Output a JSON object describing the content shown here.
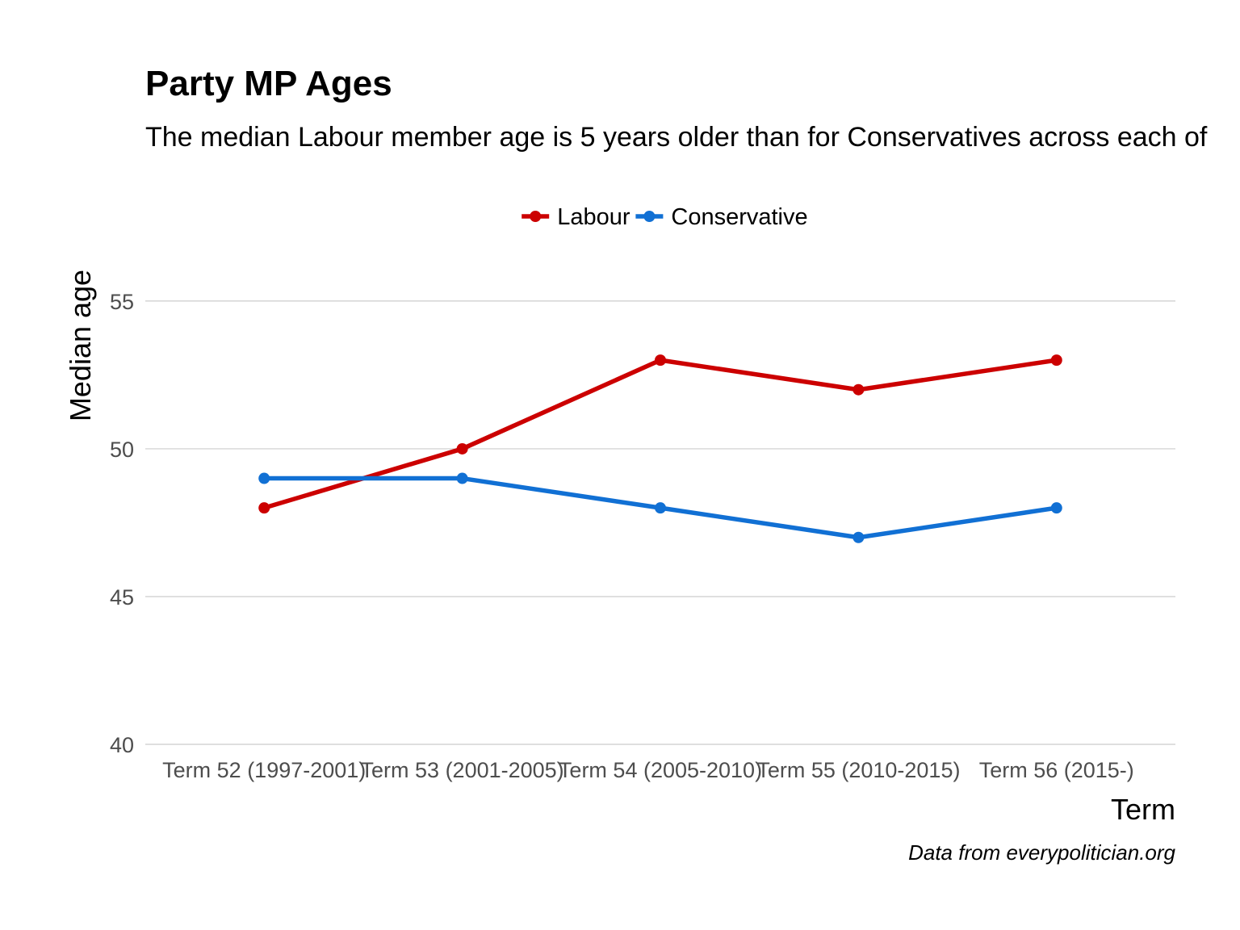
{
  "chart_data": {
    "type": "line",
    "title": "Party MP Ages",
    "subtitle": "The median Labour member age is 5 years older than for Conservatives across each of",
    "xlabel": "Term",
    "ylabel": "Median age",
    "caption": "Data from everypolitician.org",
    "categories": [
      "Term 52 (1997-2001)",
      "Term 53 (2001-2005)",
      "Term 54 (2005-2010)",
      "Term 55 (2010-2015)",
      "Term 56 (2015-)"
    ],
    "yticks": [
      40,
      45,
      50,
      55
    ],
    "ylim": [
      40,
      56.5
    ],
    "grid": true,
    "legend_position": "top",
    "series": [
      {
        "name": "Labour",
        "color": "#cc0000",
        "values": [
          48,
          50,
          53,
          52,
          53
        ]
      },
      {
        "name": "Conservative",
        "color": "#1170d4",
        "values": [
          49,
          49,
          48,
          47,
          48
        ]
      }
    ]
  }
}
